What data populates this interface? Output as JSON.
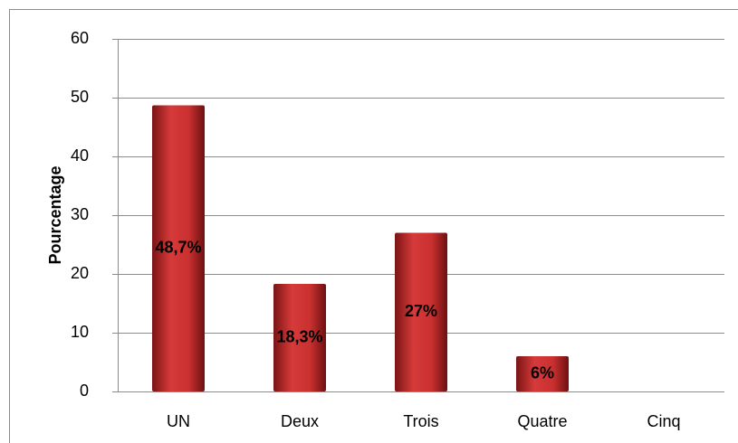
{
  "chart_data": {
    "type": "bar",
    "y_label": "Pourcentage",
    "categories": [
      "UN",
      "Deux",
      "Trois",
      "Quatre",
      "Cinq"
    ],
    "values": [
      48.7,
      18.3,
      27,
      6,
      0
    ],
    "value_labels": [
      "48,7%",
      "18,3%",
      "27%",
      "6%",
      null
    ],
    "color": "#d63a3a",
    "ylim": [
      0,
      60
    ],
    "yticks": [
      0,
      10,
      20,
      30,
      40,
      50,
      60
    ],
    "grid": true
  }
}
